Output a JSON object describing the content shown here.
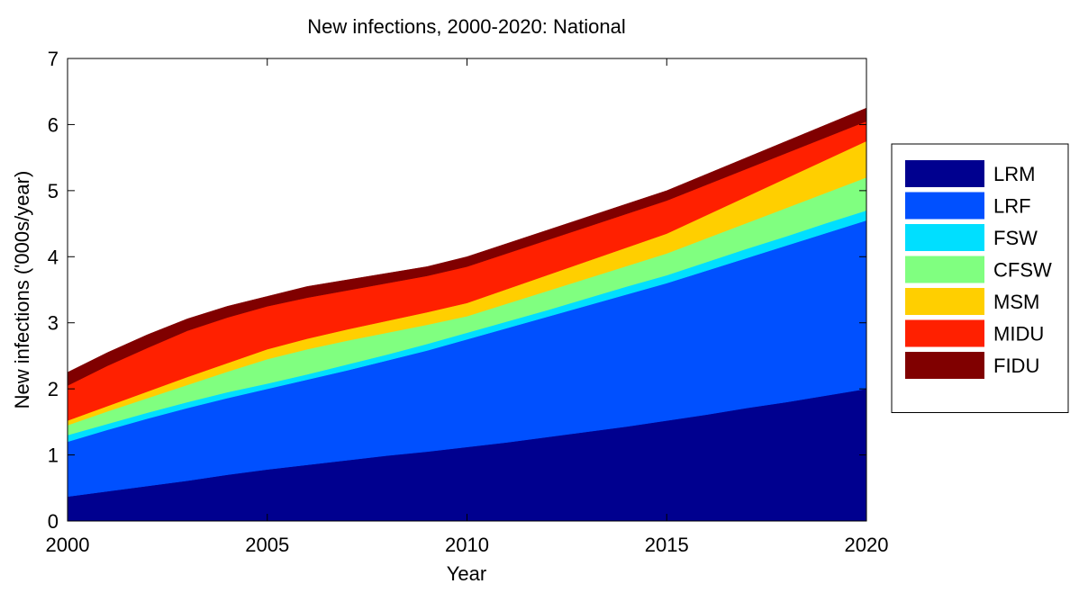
{
  "chart_data": {
    "type": "stacked_area",
    "title": "New infections, 2000-2020: National",
    "xlabel": "Year",
    "ylabel": "New infections ('000s/year)",
    "x": [
      2000,
      2001,
      2002,
      2003,
      2004,
      2005,
      2006,
      2007,
      2008,
      2009,
      2010,
      2011,
      2012,
      2013,
      2014,
      2015,
      2016,
      2017,
      2018,
      2019,
      2020
    ],
    "xlim": [
      2000,
      2020
    ],
    "xticks": [
      2000,
      2005,
      2010,
      2015,
      2020
    ],
    "ylim": [
      0,
      7
    ],
    "yticks": [
      0,
      1,
      2,
      3,
      4,
      5,
      6,
      7
    ],
    "legend": "outside-right",
    "series": [
      {
        "name": "LRM",
        "color": "#00008f",
        "values": [
          0.37,
          0.45,
          0.53,
          0.61,
          0.7,
          0.78,
          0.85,
          0.92,
          0.99,
          1.05,
          1.12,
          1.19,
          1.27,
          1.35,
          1.43,
          1.52,
          1.61,
          1.71,
          1.8,
          1.9,
          2.0
        ]
      },
      {
        "name": "LRF",
        "color": "#0050ff",
        "values": [
          0.83,
          0.93,
          1.02,
          1.1,
          1.16,
          1.22,
          1.29,
          1.36,
          1.44,
          1.53,
          1.63,
          1.73,
          1.82,
          1.91,
          2.0,
          2.08,
          2.18,
          2.27,
          2.37,
          2.46,
          2.55
        ]
      },
      {
        "name": "FSW",
        "color": "#00dfff",
        "values": [
          0.1,
          0.09,
          0.09,
          0.09,
          0.09,
          0.08,
          0.08,
          0.09,
          0.09,
          0.1,
          0.1,
          0.1,
          0.1,
          0.11,
          0.12,
          0.12,
          0.13,
          0.14,
          0.14,
          0.15,
          0.15
        ]
      },
      {
        "name": "CFSW",
        "color": "#80ff80",
        "values": [
          0.15,
          0.19,
          0.22,
          0.26,
          0.31,
          0.37,
          0.38,
          0.36,
          0.33,
          0.29,
          0.25,
          0.27,
          0.29,
          0.3,
          0.31,
          0.33,
          0.36,
          0.39,
          0.43,
          0.46,
          0.5
        ]
      },
      {
        "name": "MSM",
        "color": "#ffcf00",
        "values": [
          0.07,
          0.08,
          0.1,
          0.12,
          0.13,
          0.15,
          0.16,
          0.17,
          0.18,
          0.19,
          0.2,
          0.22,
          0.24,
          0.26,
          0.28,
          0.3,
          0.35,
          0.4,
          0.45,
          0.5,
          0.55
        ]
      },
      {
        "name": "MIDU",
        "color": "#ff2000",
        "values": [
          0.53,
          0.61,
          0.66,
          0.7,
          0.69,
          0.65,
          0.62,
          0.59,
          0.57,
          0.55,
          0.55,
          0.54,
          0.53,
          0.52,
          0.51,
          0.5,
          0.46,
          0.42,
          0.38,
          0.34,
          0.3
        ]
      },
      {
        "name": "FIDU",
        "color": "#800000",
        "values": [
          0.2,
          0.2,
          0.2,
          0.18,
          0.17,
          0.15,
          0.17,
          0.16,
          0.15,
          0.14,
          0.15,
          0.15,
          0.15,
          0.15,
          0.15,
          0.15,
          0.16,
          0.17,
          0.18,
          0.19,
          0.2
        ]
      }
    ]
  }
}
